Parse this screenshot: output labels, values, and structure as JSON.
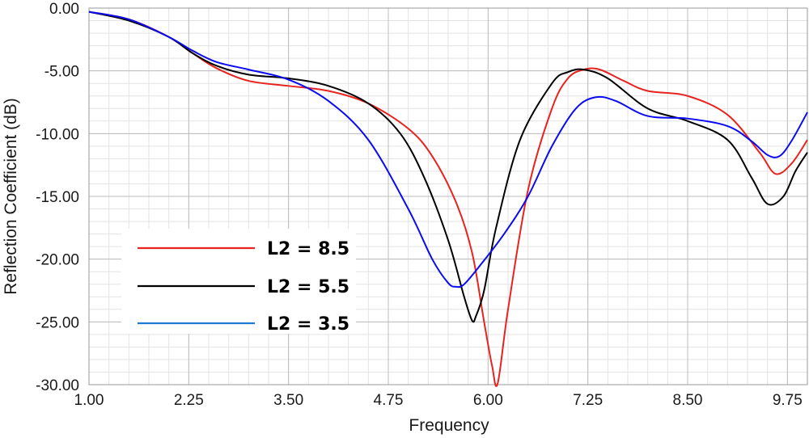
{
  "chart_data": {
    "type": "line",
    "xlabel": "Frequency",
    "ylabel": "Reflection Coefficient (dB)",
    "xlim": [
      1.0,
      10.0
    ],
    "ylim": [
      -30.0,
      0.0
    ],
    "x_ticks": [
      "1.00",
      "2.25",
      "3.50",
      "4.75",
      "6.00",
      "7.25",
      "8.50",
      "9.75"
    ],
    "x_tick_values": [
      1.0,
      2.25,
      3.5,
      4.75,
      6.0,
      7.25,
      8.5,
      9.75
    ],
    "y_ticks": [
      "0.00",
      "-5.00",
      "-10.00",
      "-15.00",
      "-20.00",
      "-25.00",
      "-30.00"
    ],
    "y_tick_values": [
      0,
      -5,
      -10,
      -15,
      -20,
      -25,
      -30
    ],
    "grid": true,
    "legend_position": "lower-left",
    "series": [
      {
        "name": "L2 = 8.5",
        "color": "#e8231f",
        "x": [
          1.0,
          1.5,
          2.0,
          2.3,
          2.6,
          3.0,
          3.5,
          4.0,
          4.5,
          5.0,
          5.3,
          5.6,
          5.8,
          5.95,
          6.05,
          6.12,
          6.25,
          6.5,
          6.8,
          7.0,
          7.2,
          7.4,
          7.7,
          8.0,
          8.5,
          9.0,
          9.4,
          9.6,
          9.8,
          10.0
        ],
        "y": [
          -0.3,
          -0.9,
          -2.3,
          -3.6,
          -4.8,
          -5.8,
          -6.2,
          -6.6,
          -7.6,
          -9.6,
          -11.8,
          -15.5,
          -19.5,
          -25.0,
          -28.5,
          -29.9,
          -24.0,
          -14.5,
          -8.0,
          -5.6,
          -4.9,
          -4.9,
          -5.8,
          -6.6,
          -7.0,
          -8.5,
          -11.5,
          -13.2,
          -12.4,
          -10.5
        ]
      },
      {
        "name": "L2 = 5.5",
        "color": "#000000",
        "x": [
          1.0,
          1.5,
          2.0,
          2.3,
          2.6,
          3.0,
          3.5,
          4.0,
          4.5,
          4.9,
          5.2,
          5.5,
          5.7,
          5.8,
          5.85,
          5.95,
          6.1,
          6.4,
          6.8,
          7.0,
          7.2,
          7.5,
          8.0,
          8.5,
          9.0,
          9.3,
          9.5,
          9.7,
          9.85,
          10.0
        ],
        "y": [
          -0.3,
          -1.0,
          -2.3,
          -3.6,
          -4.6,
          -5.3,
          -5.6,
          -6.2,
          -7.6,
          -10.0,
          -13.5,
          -18.5,
          -23.0,
          -24.9,
          -24.5,
          -22.5,
          -17.5,
          -10.5,
          -6.0,
          -5.1,
          -4.9,
          -5.6,
          -8.0,
          -9.0,
          -10.5,
          -13.5,
          -15.6,
          -15.0,
          -13.0,
          -11.5
        ]
      },
      {
        "name": "L2 = 3.5",
        "color": "#0b0bf2",
        "x": [
          1.0,
          1.5,
          2.0,
          2.3,
          2.6,
          3.0,
          3.5,
          4.0,
          4.5,
          5.0,
          5.3,
          5.5,
          5.6,
          5.7,
          5.9,
          6.2,
          6.5,
          6.8,
          7.1,
          7.35,
          7.6,
          8.0,
          8.5,
          9.0,
          9.3,
          9.5,
          9.65,
          9.8,
          10.0
        ],
        "y": [
          -0.3,
          -0.9,
          -2.3,
          -3.4,
          -4.3,
          -4.9,
          -5.7,
          -7.4,
          -10.5,
          -16.0,
          -20.0,
          -21.9,
          -22.2,
          -22.0,
          -20.5,
          -18.0,
          -15.0,
          -11.0,
          -8.0,
          -7.1,
          -7.4,
          -8.6,
          -8.8,
          -9.4,
          -10.6,
          -11.7,
          -11.8,
          -10.6,
          -8.3
        ]
      }
    ]
  }
}
